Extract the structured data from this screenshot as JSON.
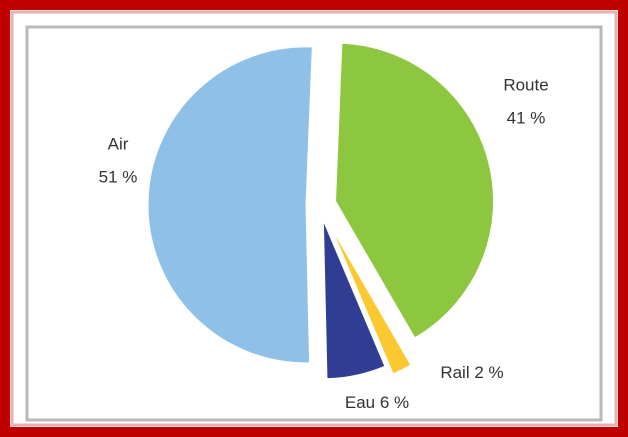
{
  "chart_data": {
    "type": "pie",
    "categories": [
      "Route",
      "Rail",
      "Eau",
      "Air"
    ],
    "values": [
      41,
      2,
      6,
      51
    ],
    "value_labels": [
      "41 %",
      "2 %",
      "6 %",
      "51 %"
    ],
    "colors": [
      "#8dc63f",
      "#fbc82f",
      "#2f3e92",
      "#8fc1e8"
    ]
  }
}
